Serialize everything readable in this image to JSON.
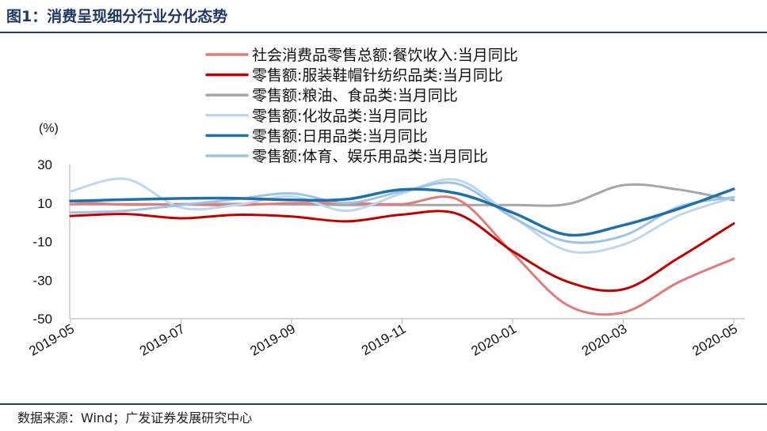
{
  "title": "图1：消费呈现细分行业分化态势",
  "source": "数据来源：Wind；广发证券发展研究中心",
  "chart_data": {
    "type": "line",
    "unit_label": "(%)",
    "x": [
      "2019-05",
      "2019-06",
      "2019-07",
      "2019-08",
      "2019-09",
      "2019-10",
      "2019-11",
      "2019-12",
      "2020-01",
      "2020-02",
      "2020-03",
      "2020-04",
      "2020-05"
    ],
    "x_ticks": [
      "2019-05",
      "2019-07",
      "2019-09",
      "2019-11",
      "2020-01",
      "2020-03",
      "2020-05"
    ],
    "ylim": [
      -50,
      30
    ],
    "y_ticks": [
      30,
      10,
      -10,
      -30,
      -50
    ],
    "grid": false,
    "legend_position": "top",
    "series": [
      {
        "name": "社会消费品零售总额:餐饮收入:当月同比",
        "color": "#e07b7b",
        "width": 3,
        "values": [
          9.4,
          9.4,
          9.3,
          8.9,
          9.9,
          10.0,
          9.4,
          11.9,
          -16.0,
          -43.1,
          -46.8,
          -31.1,
          -18.9
        ]
      },
      {
        "name": "零售额:服装鞋帽针纺织品类:当月同比",
        "color": "#c00000",
        "width": 3,
        "values": [
          3.3,
          4.3,
          2.1,
          3.9,
          3.0,
          0.5,
          4.0,
          4.4,
          -15.0,
          -30.9,
          -34.8,
          -18.5,
          -0.6
        ]
      },
      {
        "name": "零售额:粮油、食品类:当月同比",
        "color": "#a6a6a6",
        "width": 3,
        "values": [
          11.0,
          9.1,
          9.5,
          9.6,
          9.3,
          9.0,
          9.0,
          9.0,
          9.0,
          9.5,
          19.3,
          17.0,
          11.5
        ]
      },
      {
        "name": "零售额:化妆品类:当月同比",
        "color": "#bdd7ee",
        "width": 3,
        "values": [
          16.0,
          22.5,
          7.6,
          9.0,
          13.4,
          6.0,
          15.0,
          22.0,
          3.0,
          -14.8,
          -11.6,
          3.5,
          12.9
        ]
      },
      {
        "name": "零售额:日用品类:当月同比",
        "color": "#1f6fa8",
        "width": 3.5,
        "values": [
          11.0,
          11.8,
          12.4,
          12.5,
          11.6,
          12.0,
          17.0,
          15.0,
          5.0,
          -6.5,
          -1.5,
          7.0,
          17.3
        ]
      },
      {
        "name": "零售额:体育、娱乐用品类:当月同比",
        "color": "#9dc3e6",
        "width": 3,
        "values": [
          5.0,
          6.0,
          9.0,
          12.0,
          15.0,
          10.0,
          16.0,
          20.0,
          2.5,
          -10.0,
          -7.0,
          8.0,
          13.0
        ]
      }
    ]
  }
}
